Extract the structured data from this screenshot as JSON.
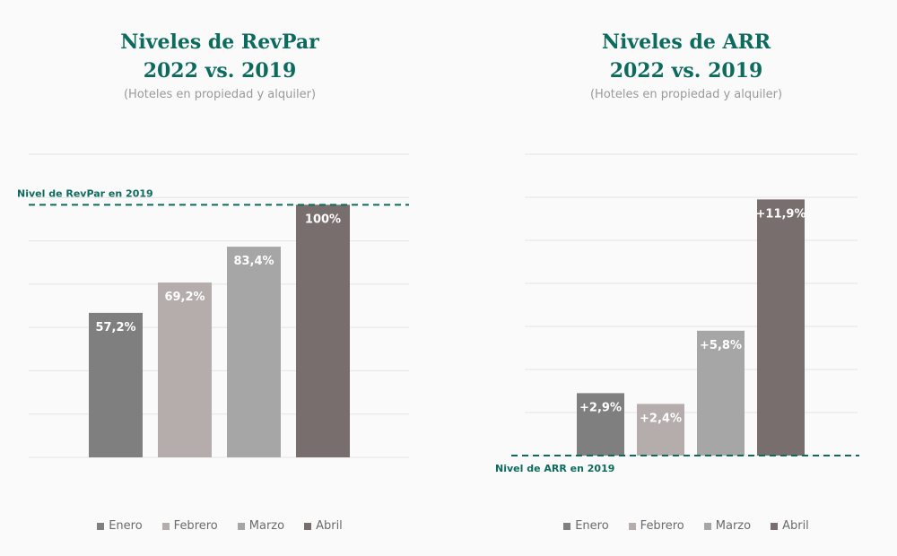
{
  "colors": {
    "Enero": "#7f7f7f",
    "Febrero": "#b5adac",
    "Marzo": "#a6a6a6",
    "Abril": "#776e6d",
    "title": "#0d6b5e",
    "reference": "#0d6b5e"
  },
  "chart_data": [
    {
      "type": "bar",
      "title_line1": "Niveles de RevPar",
      "title_line2": "2022 vs. 2019",
      "subtitle": "(Hoteles en propiedad y alquiler)",
      "categories": [
        "Enero",
        "Febrero",
        "Marzo",
        "Abril"
      ],
      "values": [
        57.2,
        69.2,
        83.4,
        100
      ],
      "data_labels": [
        "57,2%",
        "69,2%",
        "83,4%",
        "100%"
      ],
      "ylim": [
        0,
        120
      ],
      "grid": true,
      "reference_line": {
        "value": 100,
        "label": "Nivel de RevPar en 2019"
      },
      "legend": [
        "Enero",
        "Febrero",
        "Marzo",
        "Abril"
      ],
      "legend_position": "bottom"
    },
    {
      "type": "bar",
      "title_line1": "Niveles de ARR",
      "title_line2": "2022 vs. 2019",
      "subtitle": "(Hoteles en propiedad y alquiler)",
      "categories": [
        "Enero",
        "Febrero",
        "Marzo",
        "Abril"
      ],
      "values": [
        2.9,
        2.4,
        5.8,
        11.9
      ],
      "data_labels": [
        "+2,9%",
        "+2,4%",
        "+5,8%",
        "+11,9%"
      ],
      "ylim": [
        0,
        14
      ],
      "grid": true,
      "reference_line": {
        "value": 0,
        "label": "Nivel de ARR en 2019"
      },
      "legend": [
        "Enero",
        "Febrero",
        "Marzo",
        "Abril"
      ],
      "legend_position": "bottom"
    }
  ]
}
